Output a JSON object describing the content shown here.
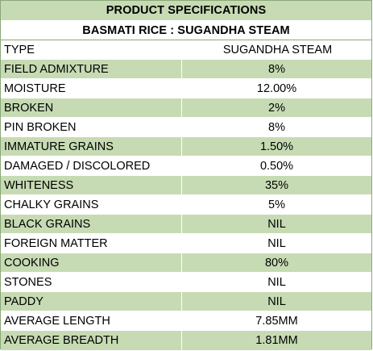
{
  "title": "PRODUCT SPECIFICATIONS",
  "subtitle": "BASMATI RICE : SUGANDHA STEAM",
  "header": {
    "label": "TYPE",
    "value": "SUGANDHA STEAM"
  },
  "rows": [
    {
      "label": "FIELD ADMIXTURE",
      "value": "8%"
    },
    {
      "label": "MOISTURE",
      "value": "12.00%"
    },
    {
      "label": "BROKEN",
      "value": "2%"
    },
    {
      "label": "PIN BROKEN",
      "value": "8%"
    },
    {
      "label": "IMMATURE GRAINS",
      "value": "1.50%"
    },
    {
      "label": "DAMAGED / DISCOLORED",
      "value": "0.50%"
    },
    {
      "label": "WHITENESS",
      "value": "35%"
    },
    {
      "label": "CHALKY GRAINS",
      "value": "5%"
    },
    {
      "label": "BLACK GRAINS",
      "value": "NIL"
    },
    {
      "label": "FOREIGN MATTER",
      "value": "NIL"
    },
    {
      "label": "COOKING",
      "value": "80%"
    },
    {
      "label": "STONES",
      "value": "NIL"
    },
    {
      "label": "PADDY",
      "value": "NIL"
    },
    {
      "label": "AVERAGE LENGTH",
      "value": "7.85MM"
    },
    {
      "label": "AVERAGE BREADTH",
      "value": "1.81MM"
    }
  ],
  "colors": {
    "band": "#c6dbb3",
    "plain": "#ffffff",
    "border": "#8aa87a"
  }
}
